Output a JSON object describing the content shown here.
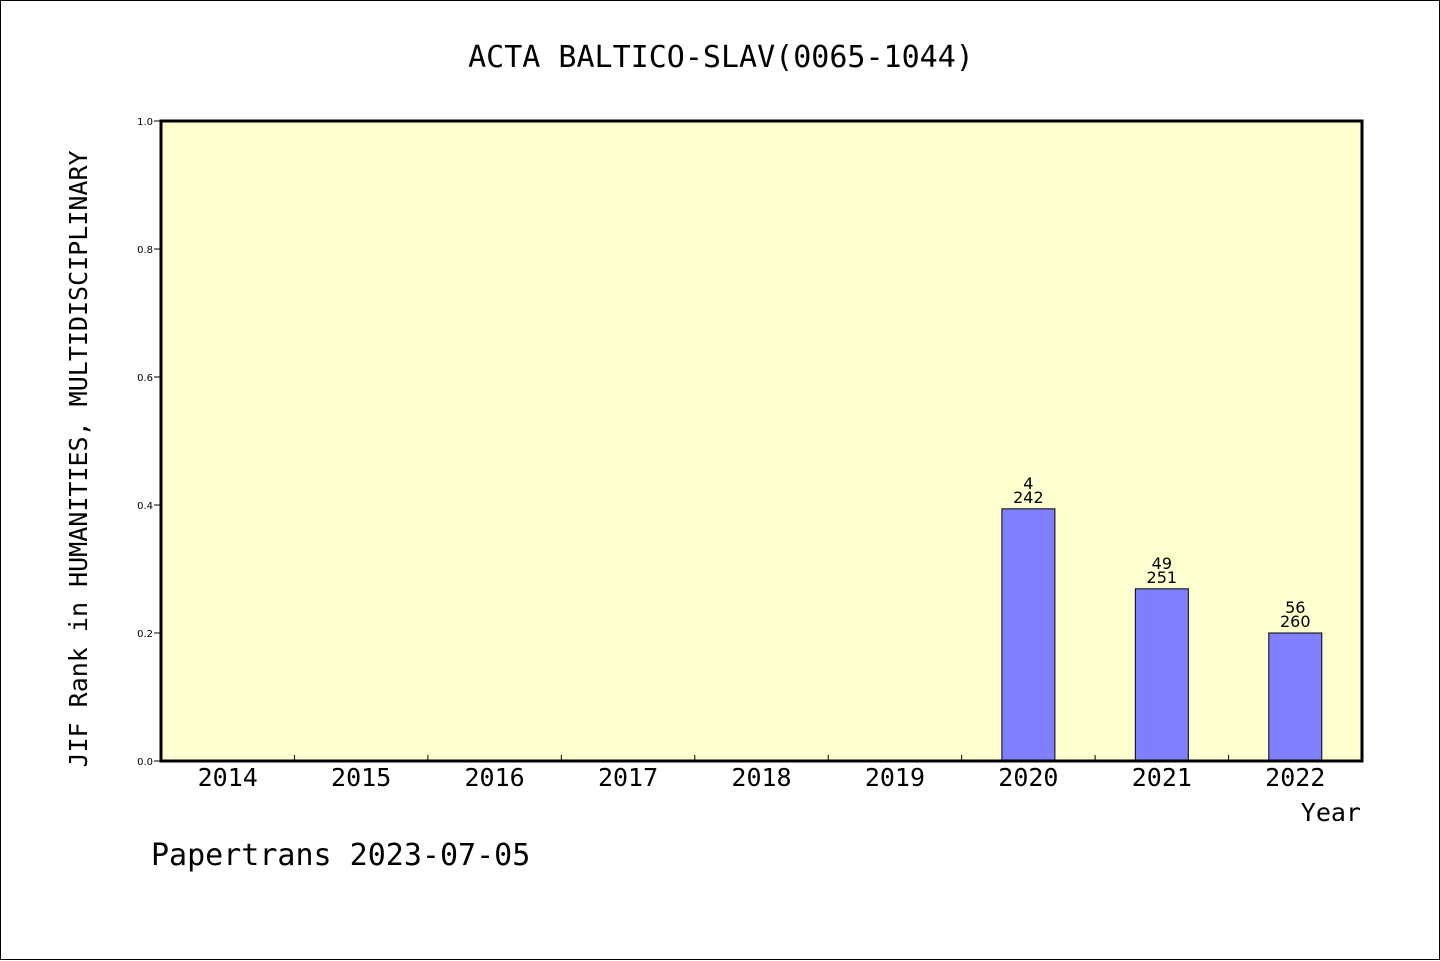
{
  "chart_data": {
    "type": "bar",
    "title": "ACTA BALTICO-SLAV(0065-1044)",
    "xlabel": "Year",
    "ylabel": "JIF Rank in HUMANITIES, MULTIDISCIPLINARY",
    "categories": [
      "2014",
      "2015",
      "2016",
      "2017",
      "2018",
      "2019",
      "2020",
      "2021",
      "2022"
    ],
    "values": [
      null,
      null,
      null,
      null,
      null,
      null,
      0.394,
      0.269,
      0.2
    ],
    "bar_labels": [
      null,
      null,
      null,
      null,
      null,
      null,
      {
        "rank": "4",
        "total": "242"
      },
      {
        "rank": "49",
        "total": "251"
      },
      {
        "rank": "56",
        "total": "260"
      }
    ],
    "ylim": [
      0,
      1.0
    ],
    "yticks": [
      "0.0",
      "0.2",
      "0.4",
      "0.6",
      "0.8",
      "1.0"
    ],
    "grid": false,
    "colors": {
      "plot_background": "#ffffd0",
      "bar_fill": "#8080ff",
      "bar_stroke": "#000000",
      "axis": "#000000"
    }
  },
  "footer": "Papertrans 2023-07-05"
}
